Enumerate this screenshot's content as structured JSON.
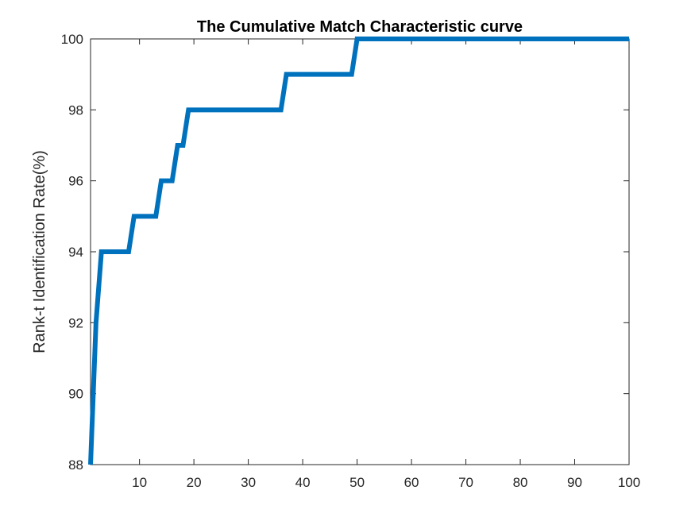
{
  "chart_data": {
    "type": "line",
    "title": "The Cumulative Match Characteristic curve",
    "xlabel": "",
    "ylabel": "Rank-t Identification Rate(%)",
    "xlim": [
      1,
      100
    ],
    "ylim": [
      88,
      100
    ],
    "x_ticks": [
      10,
      20,
      30,
      40,
      50,
      60,
      70,
      80,
      90,
      100
    ],
    "y_ticks": [
      88,
      90,
      92,
      94,
      96,
      98,
      100
    ],
    "grid": false,
    "legend": "none",
    "series": [
      {
        "color": "#0072BD",
        "x": [
          1,
          2,
          3,
          4,
          5,
          6,
          7,
          8,
          9,
          10,
          11,
          12,
          13,
          14,
          15,
          16,
          17,
          18,
          19,
          20,
          25,
          30,
          35,
          36,
          37,
          40,
          45,
          49,
          50,
          60,
          70,
          80,
          90,
          100
        ],
        "y": [
          88,
          92,
          94,
          94,
          94,
          94,
          94,
          94,
          95,
          95,
          95,
          95,
          95,
          96,
          96,
          96,
          97,
          97,
          98,
          98,
          98,
          98,
          98,
          98,
          99,
          99,
          99,
          99,
          100,
          100,
          100,
          100,
          100,
          100
        ]
      }
    ]
  }
}
